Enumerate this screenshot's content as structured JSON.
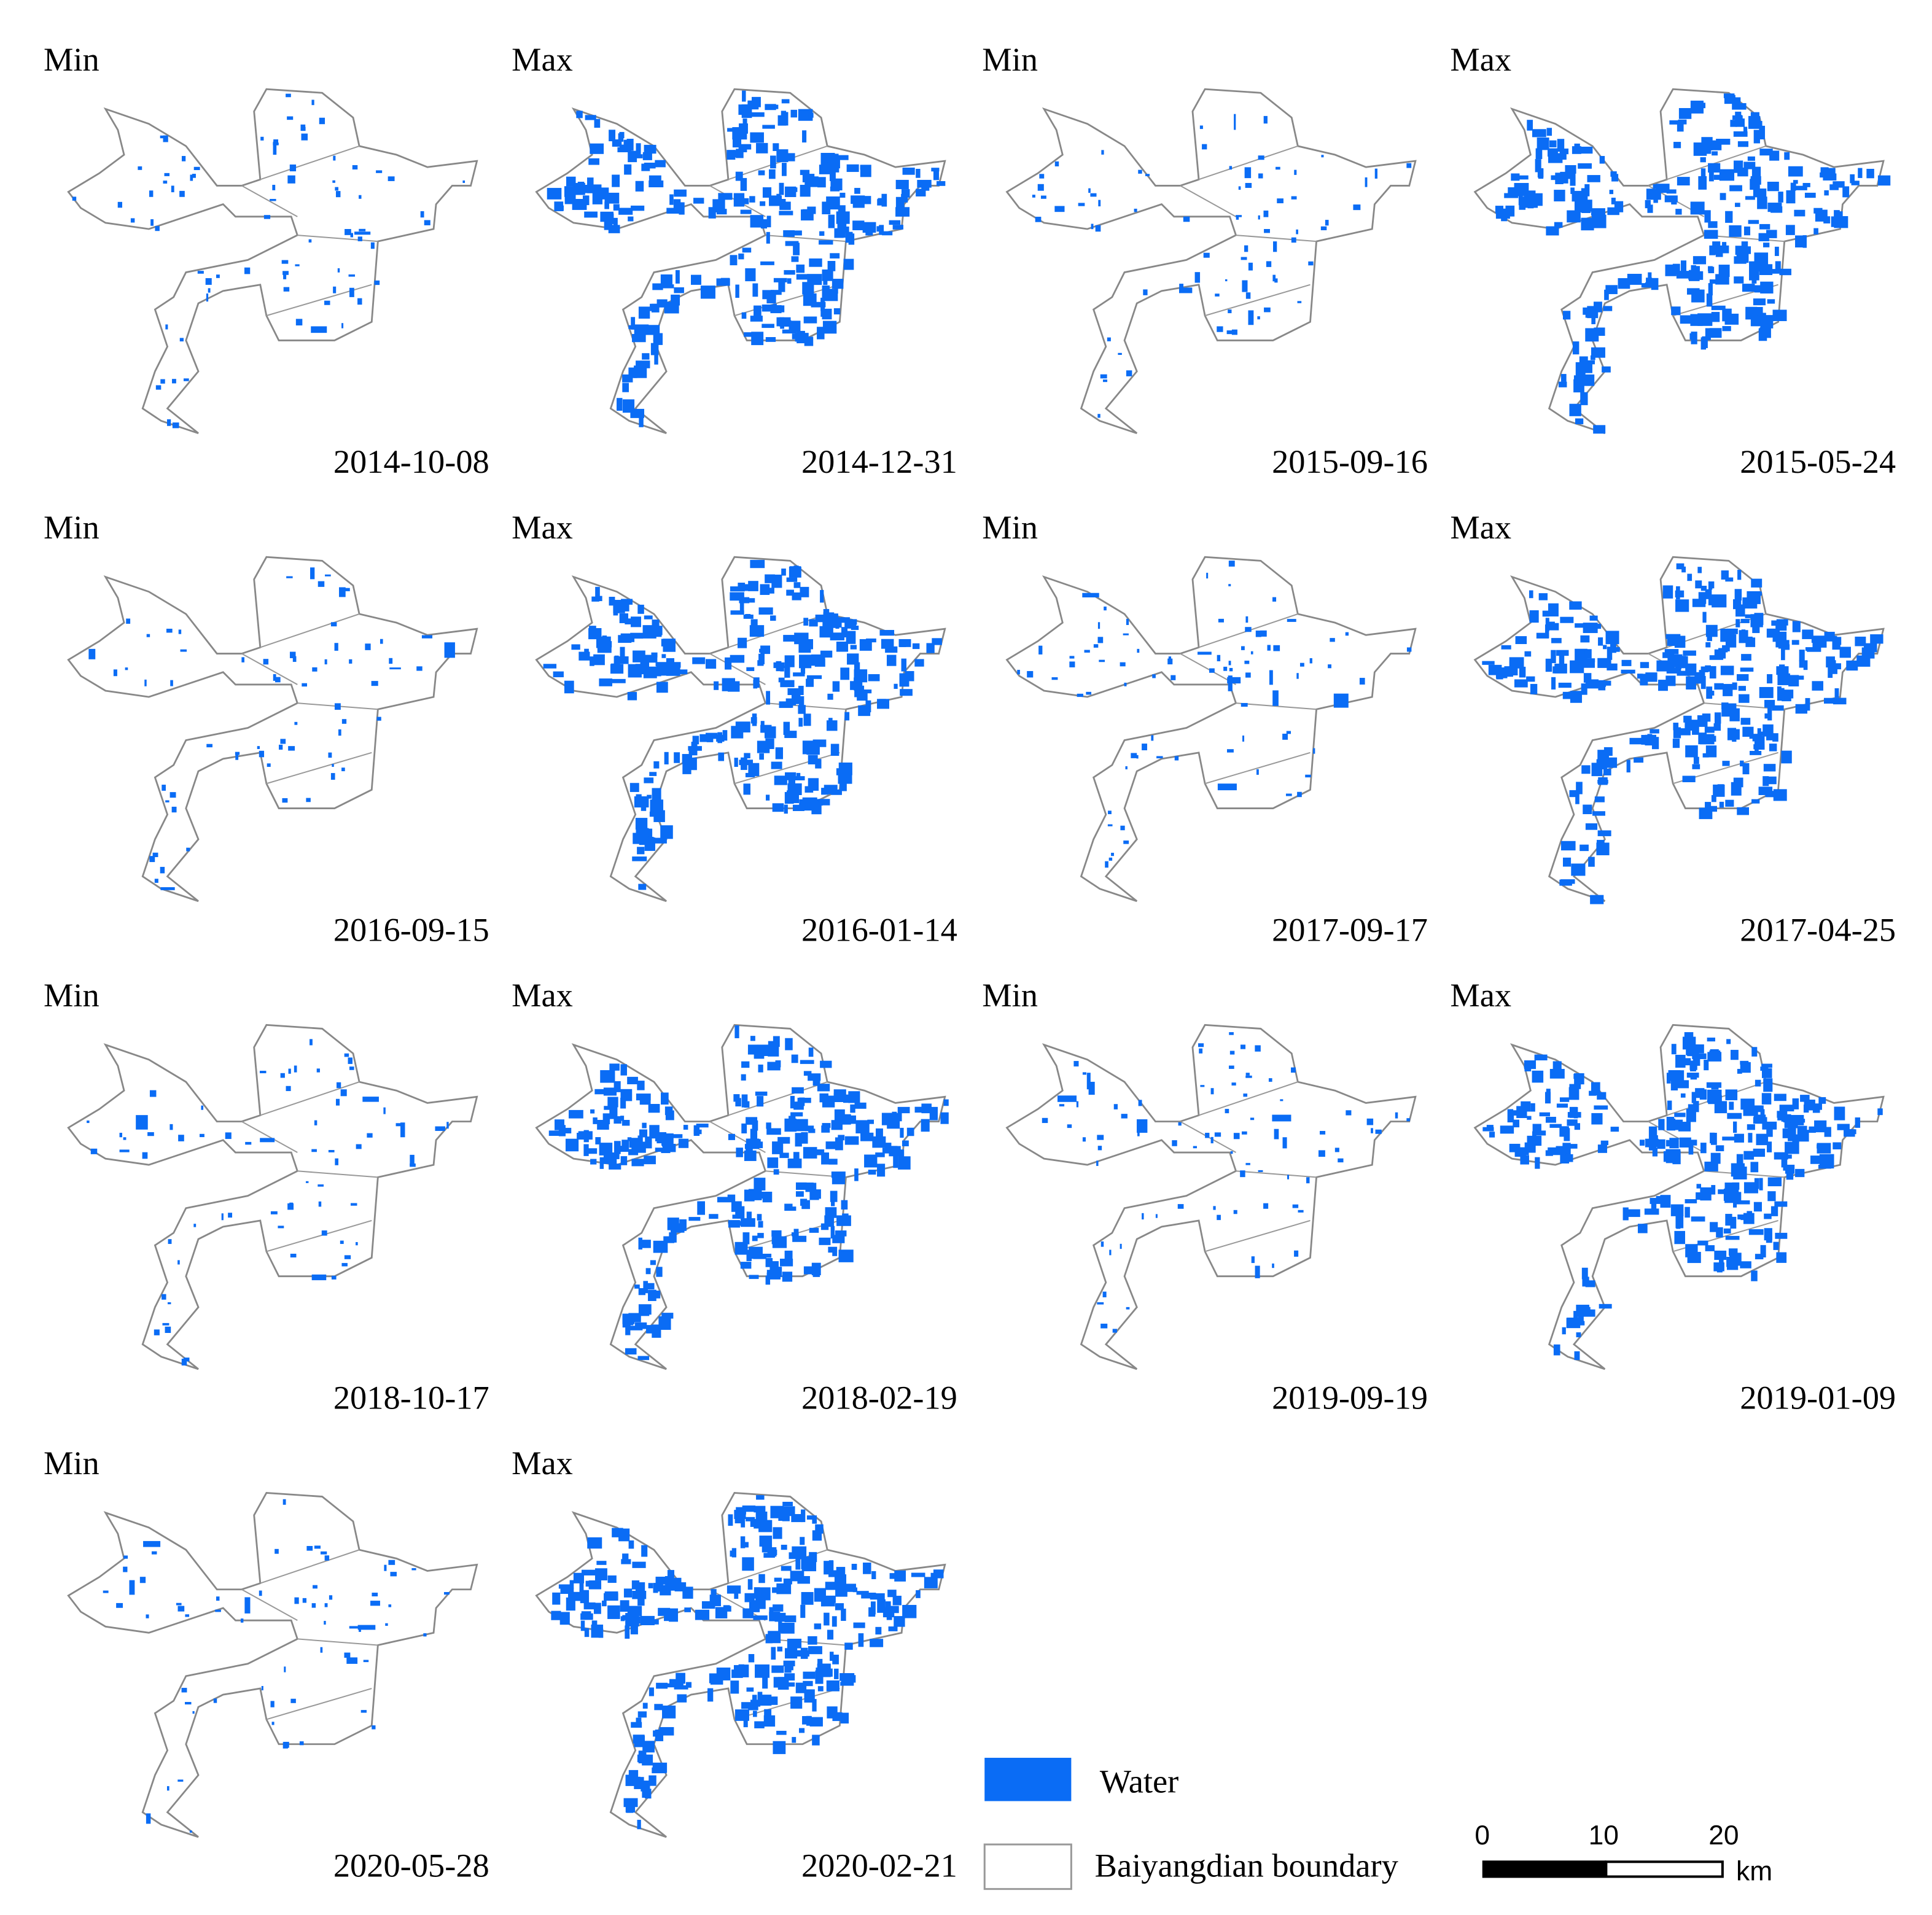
{
  "panels": [
    {
      "label": "Min",
      "date": "2014-10-08"
    },
    {
      "label": "Max",
      "date": "2014-12-31"
    },
    {
      "label": "Min",
      "date": "2015-09-16"
    },
    {
      "label": "Max",
      "date": "2015-05-24"
    },
    {
      "label": "Min",
      "date": "2016-09-15"
    },
    {
      "label": "Max",
      "date": "2016-01-14"
    },
    {
      "label": "Min",
      "date": "2017-09-17"
    },
    {
      "label": "Max",
      "date": "2017-04-25"
    },
    {
      "label": "Min",
      "date": "2018-10-17"
    },
    {
      "label": "Max",
      "date": "2018-02-19"
    },
    {
      "label": "Min",
      "date": "2019-09-19"
    },
    {
      "label": "Max",
      "date": "2019-01-09"
    },
    {
      "label": "Min",
      "date": "2020-05-28"
    },
    {
      "label": "Max",
      "date": "2020-02-21"
    }
  ],
  "legend": {
    "water": "Water",
    "boundary": "Baiyangdian boundary"
  },
  "scale_bar": {
    "ticks": [
      "0",
      "10",
      "20"
    ],
    "unit": "km"
  }
}
